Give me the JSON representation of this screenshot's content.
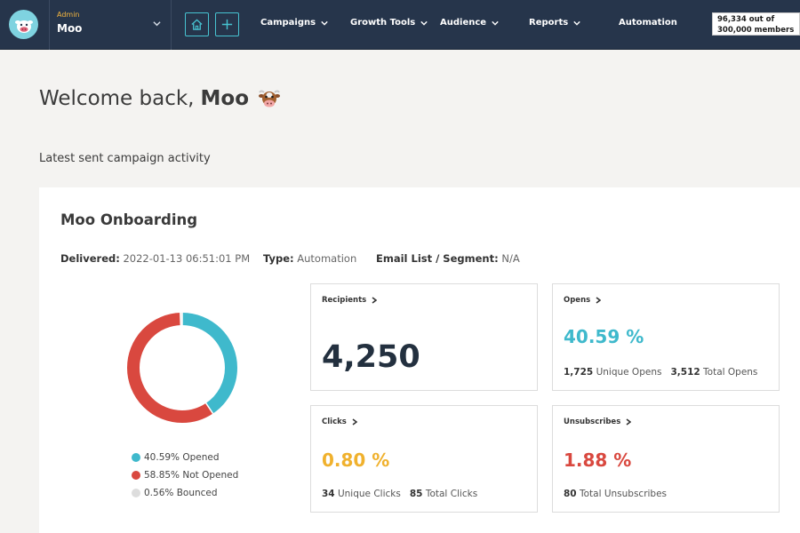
{
  "header": {
    "account_role": "Admin",
    "account_name": "Moo",
    "nav": {
      "campaigns": "Campaigns",
      "growth_tools": "Growth Tools",
      "audience": "Audience",
      "reports": "Reports",
      "automation": "Automation"
    },
    "members_line1": "96,334 out of",
    "members_line2": "300,000 members"
  },
  "welcome": {
    "prefix": "Welcome back,",
    "name": "Moo"
  },
  "subtitle": "Latest sent campaign activity",
  "campaign": {
    "name": "Moo Onboarding",
    "delivered_label": "Delivered:",
    "delivered_value": "2022-01-13 06:51:01 PM",
    "type_label": "Type:",
    "type_value": "Automation",
    "list_label": "Email List / Segment:",
    "list_value": "N/A"
  },
  "chart_data": {
    "type": "pie",
    "donut": true,
    "slices": [
      {
        "label": "Opened",
        "value": 40.59,
        "color": "#3fb9cc"
      },
      {
        "label": "Not Opened",
        "value": 58.85,
        "color": "#d9483f"
      },
      {
        "label": "Bounced",
        "value": 0.56,
        "color": "#dddddd"
      }
    ],
    "legend": [
      "40.59% Opened",
      "58.85% Not Opened",
      "0.56% Bounced"
    ],
    "legend_placement": "bottom"
  },
  "stats": {
    "recipients": {
      "label": "Recipients",
      "value": "4,250"
    },
    "opens": {
      "label": "Opens",
      "value": "40.59 %",
      "unique_count": "1,725",
      "unique_label": "Unique Opens",
      "total_count": "3,512",
      "total_label": "Total Opens"
    },
    "clicks": {
      "label": "Clicks",
      "value": "0.80 %",
      "unique_count": "34",
      "unique_label": "Unique Clicks",
      "total_count": "85",
      "total_label": "Total Clicks"
    },
    "unsubscribes": {
      "label": "Unsubscribes",
      "value": "1.88 %",
      "count": "80",
      "count_label": "Total Unsubscribes"
    }
  },
  "colors": {
    "nav_bg": "#26354b",
    "accent_teal": "#3fb9cc",
    "accent_yellow": "#f0b12d",
    "accent_red": "#d9483f",
    "recipients_text": "#23303f"
  },
  "icons": {
    "logo": "cow-logo-icon",
    "home": "home-icon",
    "add": "plus-icon",
    "welcome_emoji": "cow-face-icon"
  }
}
